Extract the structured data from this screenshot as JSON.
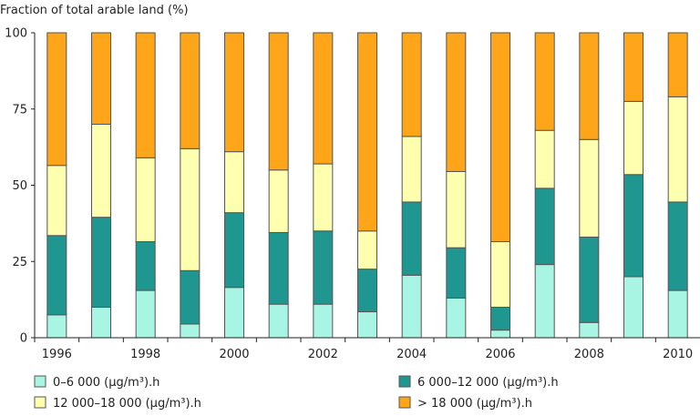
{
  "chart_data": {
    "type": "bar",
    "stacked": true,
    "title": "Fraction of total arable land (%)",
    "xlabel": "",
    "ylabel": "Fraction of total arable land (%)",
    "ylim": [
      0,
      100
    ],
    "yticks": [
      0,
      25,
      50,
      75,
      100
    ],
    "xtick_labels": [
      "1996",
      "1998",
      "2000",
      "2002",
      "2004",
      "2006",
      "2008",
      "2010"
    ],
    "categories": [
      "1996",
      "1997",
      "1998",
      "1999",
      "2000",
      "2001",
      "2002",
      "2003",
      "2004",
      "2005",
      "2006",
      "2007",
      "2008",
      "2009",
      "2010"
    ],
    "grid": false,
    "legend_position": "bottom",
    "series": [
      {
        "name": "0–6 000 (µg/m³).h",
        "color": "#a8f5e3",
        "values": [
          7.5,
          10,
          15.5,
          4.5,
          16.5,
          11,
          11,
          8.5,
          20.5,
          13,
          2.5,
          24,
          5,
          20,
          15.5
        ]
      },
      {
        "name": "6 000–12 000 (µg/m³).h",
        "color": "#1f9690",
        "values": [
          26,
          29.5,
          16,
          17.5,
          24.5,
          23.5,
          24,
          14,
          24,
          16.5,
          7.5,
          25,
          28,
          33.5,
          29
        ]
      },
      {
        "name": "12 000–18 000 (µg/m³).h",
        "color": "#ffffb0",
        "values": [
          23,
          30.5,
          27.5,
          40,
          20,
          20.5,
          22,
          12.5,
          21.5,
          25,
          21.5,
          19,
          32,
          24,
          34.5
        ]
      },
      {
        "name": "> 18 000 (µg/m³).h",
        "color": "#ffa519",
        "values": [
          43.5,
          30,
          41,
          38,
          39,
          45,
          43,
          65,
          34,
          45.5,
          68.5,
          32,
          35,
          22.5,
          21
        ]
      }
    ]
  }
}
